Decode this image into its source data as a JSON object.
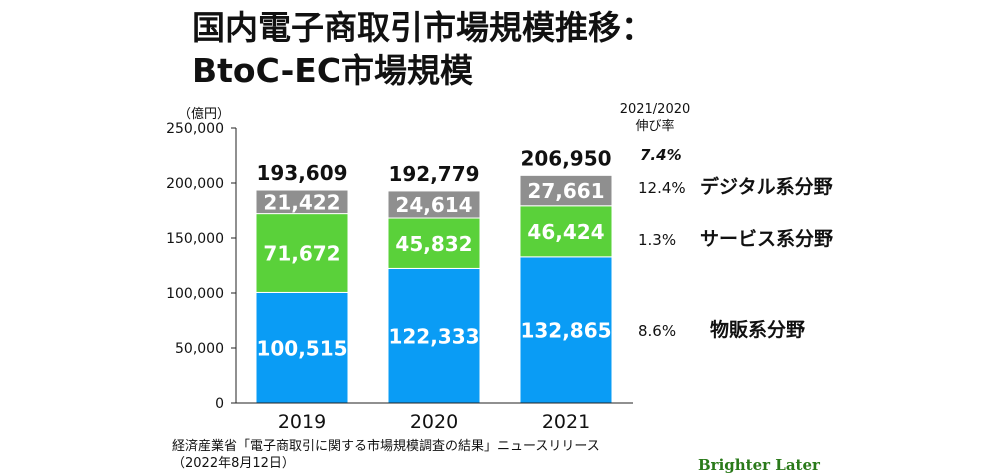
{
  "title_lines": [
    "国内電子商取引市場規模推移：",
    "BtoC-EC市場規模"
  ],
  "unit_label": "（億円）",
  "rate_header_lines": [
    "2021/2020",
    "伸び率"
  ],
  "source_lines": [
    "経済産業省「電子商取引に関する市場規模調査の結果」ニュースリリース",
    "（2022年8月12日）"
  ],
  "brand": "Brighter Later",
  "colors": {
    "physical": "#0a9cf5",
    "service": "#5ad13a",
    "digital": "#8f8f8f"
  },
  "chart_data": {
    "type": "bar",
    "stacked": true,
    "categories": [
      "2019",
      "2020",
      "2021"
    ],
    "ylim": [
      0,
      250000
    ],
    "yticks": [
      "0",
      "50,000",
      "100,000",
      "150,000",
      "200,000",
      "250,000"
    ],
    "ytick_values": [
      0,
      50000,
      100000,
      150000,
      200000,
      250000
    ],
    "grid": false,
    "series": [
      {
        "name": "物販系分野",
        "values": [
          100515,
          122333,
          132865
        ],
        "labels": [
          "100,515",
          "122,333",
          "132,865"
        ],
        "color": "#0a9cf5",
        "growth": "8.6%"
      },
      {
        "name": "サービス系分野",
        "values": [
          71672,
          45832,
          46424
        ],
        "labels": [
          "71,672",
          "45,832",
          "46,424"
        ],
        "color": "#5ad13a",
        "growth": "1.3%"
      },
      {
        "name": "デジタル系分野",
        "values": [
          21422,
          24614,
          27661
        ],
        "labels": [
          "21,422",
          "24,614",
          "27,661"
        ],
        "color": "#8f8f8f",
        "growth": "12.4%"
      }
    ],
    "totals": [
      "193,609",
      "192,779",
      "206,950"
    ],
    "total_growth": "7.4%"
  }
}
